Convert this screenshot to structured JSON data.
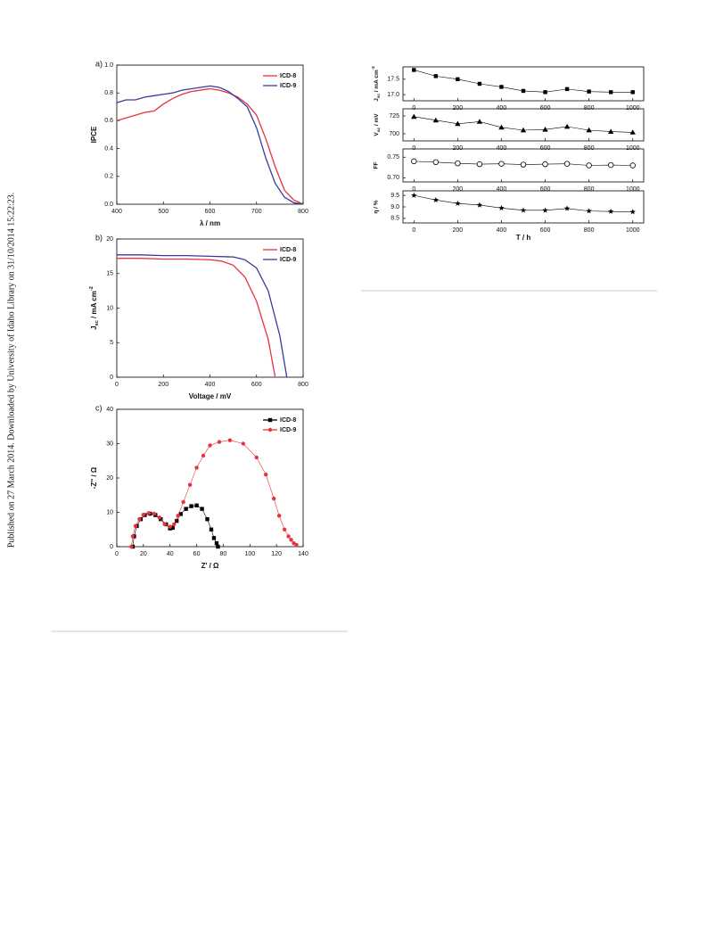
{
  "side_note": "Published on 27 March 2014. Downloaded by University of Idaho Library on 31/10/2014 15:22:23.",
  "chart_data": [
    {
      "type": "line",
      "label": "a)",
      "xlabel": "λ / nm",
      "ylabel": "IPCE",
      "xlim": [
        400,
        800
      ],
      "xticks": [
        400,
        500,
        600,
        700,
        800
      ],
      "ylim": [
        0,
        1
      ],
      "yticks": [
        {
          "value": 0,
          "label": "0.0"
        },
        0.2,
        0.4,
        0.6,
        0.8,
        {
          "value": 1,
          "label": "1.0"
        }
      ],
      "legend": "upper right",
      "x": [
        400,
        420,
        440,
        460,
        480,
        500,
        520,
        540,
        560,
        580,
        600,
        620,
        640,
        660,
        680,
        700,
        720,
        740,
        760,
        780,
        800
      ],
      "series": [
        {
          "name": "ICD-8",
          "color": "#e8323c",
          "values": [
            0.6,
            0.62,
            0.64,
            0.66,
            0.67,
            0.72,
            0.76,
            0.79,
            0.81,
            0.82,
            0.83,
            0.82,
            0.8,
            0.77,
            0.72,
            0.64,
            0.47,
            0.27,
            0.1,
            0.03,
            0
          ]
        },
        {
          "name": "ICD-9",
          "color": "#3a3a9c",
          "values": [
            0.73,
            0.75,
            0.75,
            0.77,
            0.78,
            0.79,
            0.8,
            0.82,
            0.83,
            0.84,
            0.85,
            0.84,
            0.81,
            0.76,
            0.7,
            0.55,
            0.33,
            0.15,
            0.05,
            0.01,
            0
          ]
        }
      ]
    },
    {
      "type": "line",
      "label": "b)",
      "xlabel": "Voltage / mV",
      "ylabel": [
        {
          "text": "J"
        },
        {
          "text": "sc",
          "shift": "sub"
        },
        {
          "text": " / mA cm"
        },
        {
          "text": "-2",
          "shift": "sup"
        }
      ],
      "xlim": [
        0,
        800
      ],
      "xticks": [
        0,
        200,
        400,
        600,
        800
      ],
      "ylim": [
        0,
        20
      ],
      "yticks": [
        0,
        5,
        10,
        15,
        20
      ],
      "legend": "upper right",
      "series": [
        {
          "name": "ICD-8",
          "color": "#e8323c",
          "x": [
            0,
            100,
            200,
            300,
            400,
            450,
            500,
            550,
            600,
            650,
            680
          ],
          "values": [
            17.2,
            17.2,
            17.1,
            17.1,
            17.0,
            16.8,
            16.2,
            14.5,
            11.0,
            5.5,
            0
          ]
        },
        {
          "name": "ICD-9",
          "color": "#3a3a9c",
          "x": [
            0,
            100,
            200,
            300,
            400,
            500,
            550,
            600,
            650,
            700,
            730
          ],
          "values": [
            17.7,
            17.7,
            17.6,
            17.6,
            17.5,
            17.4,
            17.0,
            15.8,
            12.5,
            6.0,
            0
          ]
        }
      ]
    },
    {
      "type": "line",
      "label": "c)",
      "xlabel": "Z' / Ω",
      "ylabel": "-Z'' / Ω",
      "xlim": [
        0,
        140
      ],
      "xticks": [
        0,
        20,
        40,
        60,
        80,
        100,
        120,
        140
      ],
      "ylim": [
        0,
        40
      ],
      "yticks": [
        0,
        10,
        20,
        30,
        40
      ],
      "legend": "upper right",
      "series": [
        {
          "name": "ICD-8",
          "color": "#000000",
          "marker": "square",
          "x": [
            12,
            13,
            15,
            18,
            21,
            25,
            29,
            33,
            37,
            40,
            42,
            45,
            48,
            52,
            56,
            60,
            64,
            68,
            71,
            73,
            75,
            76
          ],
          "values": [
            0,
            3,
            6,
            8,
            9.2,
            9.6,
            9.2,
            8,
            6.5,
            5.3,
            5.5,
            7.5,
            9.5,
            11,
            11.8,
            12,
            11,
            8,
            5,
            2.5,
            1,
            0
          ]
        },
        {
          "name": "ICD-9",
          "color": "#e8323c",
          "marker": "circle",
          "x": [
            11,
            12,
            14,
            17,
            20,
            24,
            28,
            32,
            36,
            40,
            43,
            46,
            50,
            55,
            60,
            65,
            70,
            77,
            85,
            95,
            105,
            112,
            118,
            122,
            126,
            129,
            131,
            133,
            135
          ],
          "values": [
            0,
            3,
            6,
            8,
            9.3,
            9.8,
            9.6,
            8.5,
            6.5,
            5.8,
            6.5,
            9,
            13,
            18,
            23,
            26.5,
            29.5,
            30.5,
            31,
            30,
            26,
            21,
            14,
            9,
            5,
            3,
            2,
            1,
            0.5
          ]
        }
      ]
    },
    {
      "type": "line",
      "xlabel": "T / h",
      "xlim": [
        -50,
        1050
      ],
      "xticks": [
        0,
        200,
        400,
        600,
        800,
        1000
      ],
      "x": [
        0,
        100,
        200,
        300,
        400,
        500,
        600,
        700,
        800,
        900,
        1000
      ],
      "panels": [
        {
          "ylabel": [
            {
              "text": "J"
            },
            {
              "text": "sc",
              "shift": "sub"
            },
            {
              "text": " / mA cm"
            },
            {
              "text": "-2",
              "shift": "sup"
            }
          ],
          "ylim": [
            16.8,
            17.9
          ],
          "yticks": [
            {
              "value": 17,
              "label": "17.0"
            },
            17.5
          ],
          "marker": "square",
          "color": "#000000",
          "values": [
            17.8,
            17.6,
            17.5,
            17.35,
            17.25,
            17.12,
            17.08,
            17.18,
            17.1,
            17.08,
            17.08
          ]
        },
        {
          "ylabel": [
            {
              "text": "V"
            },
            {
              "text": "oc",
              "shift": "sub"
            },
            {
              "text": " / mV"
            }
          ],
          "ylim": [
            690,
            735
          ],
          "yticks": [
            700,
            725
          ],
          "marker": "triangle",
          "color": "#000000",
          "values": [
            724,
            719,
            714,
            717,
            709,
            705,
            706,
            710,
            705,
            703,
            702
          ]
        },
        {
          "ylabel": "FF",
          "ylim": [
            0.69,
            0.77
          ],
          "yticks": [
            {
              "value": 0.7,
              "label": "0.70"
            },
            0.75
          ],
          "marker": "open-circle",
          "color": "#000000",
          "values": [
            0.74,
            0.738,
            0.735,
            0.733,
            0.734,
            0.732,
            0.733,
            0.734,
            0.73,
            0.731,
            0.73
          ]
        },
        {
          "ylabel": "η / %",
          "ylim": [
            8.3,
            9.7
          ],
          "yticks": [
            8.5,
            {
              "value": 9,
              "label": "9.0"
            },
            9.5
          ],
          "marker": "star",
          "color": "#000000",
          "values": [
            9.5,
            9.3,
            9.15,
            9.08,
            8.95,
            8.85,
            8.85,
            8.93,
            8.82,
            8.8,
            8.78
          ]
        }
      ]
    }
  ]
}
